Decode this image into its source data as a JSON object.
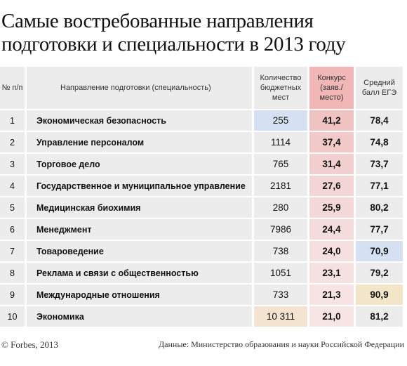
{
  "header": {
    "title_lines": [
      "Самые востребованные направления",
      "подготовки и специальности в 2013 году"
    ]
  },
  "table": {
    "columns": [
      "№ п/п",
      "Направление подготовки (специальность)",
      "Количество бюджетных мест",
      "Конкурс (заяв./ место)",
      "Средний балл ЕГЭ"
    ],
    "rows": [
      [
        "1",
        "Экономическая безопасность",
        "255",
        "41,2",
        "78,4"
      ],
      [
        "2",
        "Управление персоналом",
        "1114",
        "37,4",
        "74,8"
      ],
      [
        "3",
        "Торговое дело",
        "765",
        "31,4",
        "73,7"
      ],
      [
        "4",
        "Государственное и муниципальное управление",
        "2181",
        "27,6",
        "77,1"
      ],
      [
        "5",
        "Медицинская биохимия",
        "280",
        "25,9",
        "80,2"
      ],
      [
        "6",
        "Менеджмент",
        "7986",
        "24,4",
        "77,7"
      ],
      [
        "7",
        "Товароведение",
        "738",
        "24,0",
        "70,9"
      ],
      [
        "8",
        "Реклама и связи с общественностью",
        "1051",
        "23,1",
        "79,2"
      ],
      [
        "9",
        "Международные отношения",
        "733",
        "21,3",
        "90,9"
      ],
      [
        "10",
        "Экономика",
        "10 311",
        "21,0",
        "81,2"
      ]
    ]
  },
  "footer": {
    "copyright": "© Forbes, 2013",
    "source": "Данные: Министерство образования и науки Российской Федерации"
  }
}
